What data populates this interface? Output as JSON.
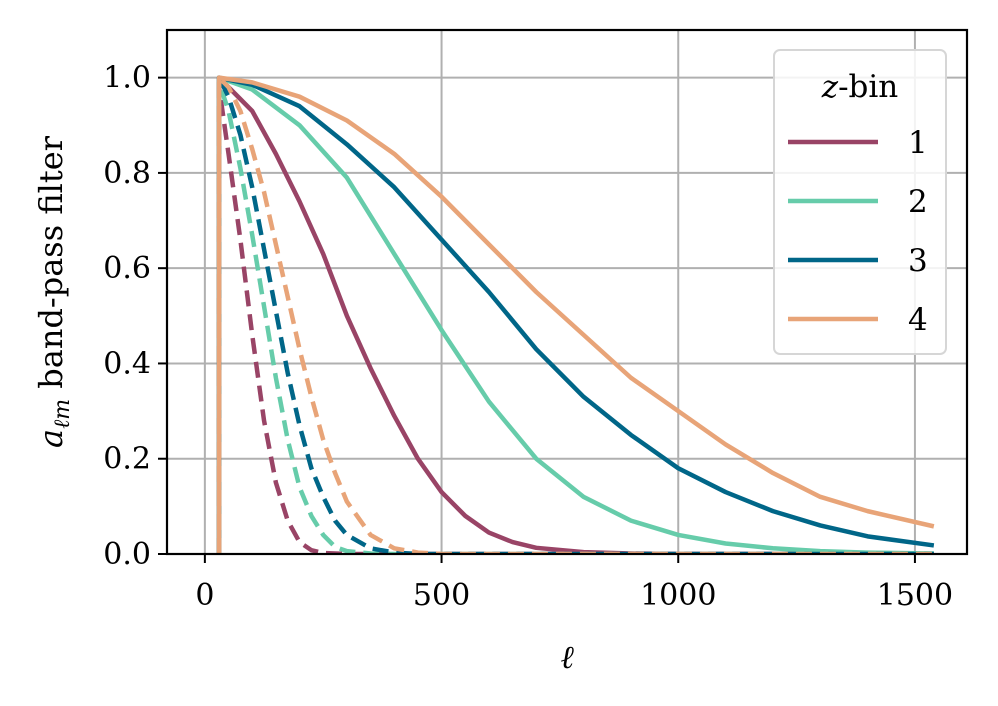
{
  "chart_data": {
    "type": "line",
    "xlabel": "ℓ",
    "ylabel_main": "a",
    "ylabel_sub": "ℓm",
    "ylabel_rest": "band-pass filter",
    "xlim": [
      -80,
      1610
    ],
    "ylim": [
      0,
      1.1
    ],
    "xticks": [
      0,
      500,
      1000,
      1500
    ],
    "xtick_labels": [
      "0",
      "500",
      "1000",
      "1500"
    ],
    "yticks": [
      0.0,
      0.2,
      0.4,
      0.6,
      0.8,
      1.0
    ],
    "ytick_labels": [
      "0.0",
      "0.2",
      "0.4",
      "0.6",
      "0.8",
      "1.0"
    ],
    "grid": true,
    "legend": {
      "title_var": "z",
      "title_rest": "-bin",
      "placement": "top-right",
      "labels": [
        "1",
        "2",
        "3",
        "4"
      ]
    },
    "colors": [
      "#994466",
      "#66ccaa",
      "#006688",
      "#e8a478"
    ],
    "x_start": 30,
    "x_end": 1540,
    "series": [
      {
        "name": "1",
        "style": "solid",
        "points": [
          [
            30,
            1.0
          ],
          [
            100,
            0.93
          ],
          [
            150,
            0.84
          ],
          [
            200,
            0.74
          ],
          [
            250,
            0.63
          ],
          [
            300,
            0.5
          ],
          [
            350,
            0.39
          ],
          [
            400,
            0.29
          ],
          [
            450,
            0.2
          ],
          [
            500,
            0.13
          ],
          [
            550,
            0.08
          ],
          [
            600,
            0.045
          ],
          [
            650,
            0.025
          ],
          [
            700,
            0.013
          ],
          [
            800,
            0.004
          ],
          [
            900,
            0.001
          ],
          [
            1000,
            0.0
          ],
          [
            1540,
            0.0
          ]
        ]
      },
      {
        "name": "1",
        "style": "dashed",
        "points": [
          [
            30,
            0.98
          ],
          [
            50,
            0.84
          ],
          [
            75,
            0.66
          ],
          [
            100,
            0.46
          ],
          [
            125,
            0.28
          ],
          [
            150,
            0.15
          ],
          [
            175,
            0.07
          ],
          [
            200,
            0.025
          ],
          [
            225,
            0.008
          ],
          [
            250,
            0.002
          ],
          [
            300,
            0.0
          ],
          [
            1540,
            0.0
          ]
        ]
      },
      {
        "name": "2",
        "style": "solid",
        "points": [
          [
            30,
            1.0
          ],
          [
            100,
            0.975
          ],
          [
            200,
            0.9
          ],
          [
            300,
            0.79
          ],
          [
            400,
            0.63
          ],
          [
            500,
            0.47
          ],
          [
            600,
            0.32
          ],
          [
            700,
            0.2
          ],
          [
            800,
            0.12
          ],
          [
            900,
            0.07
          ],
          [
            1000,
            0.04
          ],
          [
            1100,
            0.022
          ],
          [
            1200,
            0.012
          ],
          [
            1300,
            0.006
          ],
          [
            1400,
            0.003
          ],
          [
            1540,
            0.001
          ]
        ]
      },
      {
        "name": "2",
        "style": "dashed",
        "points": [
          [
            30,
            0.99
          ],
          [
            50,
            0.93
          ],
          [
            75,
            0.81
          ],
          [
            100,
            0.67
          ],
          [
            125,
            0.52
          ],
          [
            150,
            0.37
          ],
          [
            175,
            0.24
          ],
          [
            200,
            0.14
          ],
          [
            225,
            0.08
          ],
          [
            250,
            0.04
          ],
          [
            275,
            0.015
          ],
          [
            300,
            0.006
          ],
          [
            350,
            0.001
          ],
          [
            400,
            0.0
          ],
          [
            1540,
            0.0
          ]
        ]
      },
      {
        "name": "3",
        "style": "solid",
        "points": [
          [
            30,
            1.0
          ],
          [
            100,
            0.985
          ],
          [
            200,
            0.94
          ],
          [
            300,
            0.86
          ],
          [
            400,
            0.77
          ],
          [
            500,
            0.66
          ],
          [
            600,
            0.55
          ],
          [
            700,
            0.43
          ],
          [
            800,
            0.33
          ],
          [
            900,
            0.25
          ],
          [
            1000,
            0.18
          ],
          [
            1100,
            0.13
          ],
          [
            1200,
            0.09
          ],
          [
            1300,
            0.06
          ],
          [
            1400,
            0.037
          ],
          [
            1540,
            0.018
          ]
        ]
      },
      {
        "name": "3",
        "style": "dashed",
        "points": [
          [
            30,
            1.0
          ],
          [
            50,
            0.96
          ],
          [
            75,
            0.88
          ],
          [
            100,
            0.77
          ],
          [
            125,
            0.64
          ],
          [
            150,
            0.51
          ],
          [
            175,
            0.38
          ],
          [
            200,
            0.27
          ],
          [
            225,
            0.18
          ],
          [
            250,
            0.12
          ],
          [
            275,
            0.07
          ],
          [
            300,
            0.04
          ],
          [
            350,
            0.012
          ],
          [
            400,
            0.003
          ],
          [
            450,
            0.0
          ],
          [
            1540,
            0.0
          ]
        ]
      },
      {
        "name": "4",
        "style": "solid",
        "points": [
          [
            30,
            1.0
          ],
          [
            100,
            0.99
          ],
          [
            200,
            0.96
          ],
          [
            300,
            0.91
          ],
          [
            400,
            0.84
          ],
          [
            500,
            0.75
          ],
          [
            600,
            0.65
          ],
          [
            700,
            0.55
          ],
          [
            800,
            0.46
          ],
          [
            900,
            0.37
          ],
          [
            1000,
            0.3
          ],
          [
            1100,
            0.23
          ],
          [
            1200,
            0.17
          ],
          [
            1300,
            0.12
          ],
          [
            1400,
            0.09
          ],
          [
            1540,
            0.058
          ]
        ]
      },
      {
        "name": "4",
        "style": "dashed",
        "points": [
          [
            30,
            1.0
          ],
          [
            50,
            0.98
          ],
          [
            75,
            0.93
          ],
          [
            100,
            0.85
          ],
          [
            125,
            0.76
          ],
          [
            150,
            0.65
          ],
          [
            175,
            0.54
          ],
          [
            200,
            0.43
          ],
          [
            225,
            0.33
          ],
          [
            250,
            0.24
          ],
          [
            275,
            0.17
          ],
          [
            300,
            0.11
          ],
          [
            350,
            0.04
          ],
          [
            400,
            0.012
          ],
          [
            450,
            0.003
          ],
          [
            500,
            0.0
          ],
          [
            1540,
            0.0
          ]
        ]
      }
    ]
  }
}
